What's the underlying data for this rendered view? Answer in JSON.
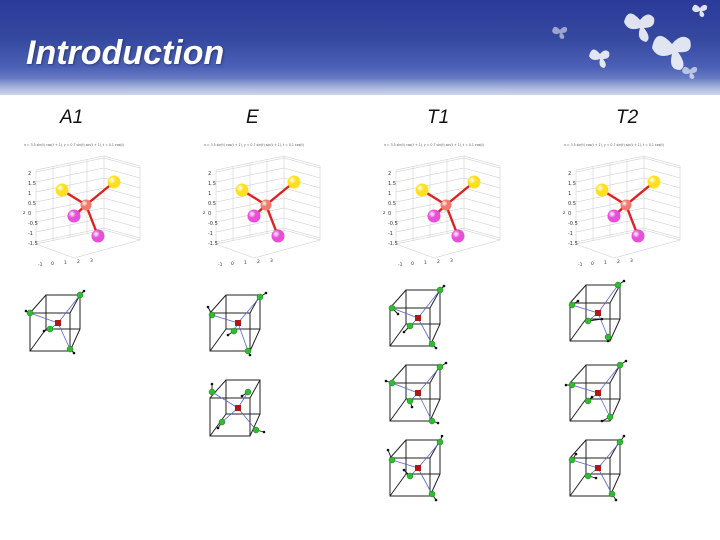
{
  "slide": {
    "title": "Introduction"
  },
  "columns": [
    {
      "label": "A1"
    },
    {
      "label": "E"
    },
    {
      "label": "T1"
    },
    {
      "label": "T2"
    }
  ],
  "plot": {
    "caption": "x = 3.5 sin(t) cos(t + 1), y = 0.7 sin(t) sin(t + 1), t = 0.1 cos(t)",
    "y_ticks": [
      "2",
      "1.5",
      "1",
      "0.5",
      "0",
      "-0.5",
      "-1",
      "-1.5"
    ],
    "x_ticks": [
      "-1",
      "0",
      "1",
      "2",
      "3"
    ],
    "z_axis_label": "z",
    "atom_colors": {
      "center": "#f07a6e",
      "top": "#ffe020",
      "bottom": "#e84ed8",
      "bond": "#e02020"
    }
  },
  "cube_colors": {
    "edge": "#222222",
    "green": "#2ebd2e",
    "red": "#b01818",
    "arrow": "#111111",
    "link": "#5566cc"
  }
}
